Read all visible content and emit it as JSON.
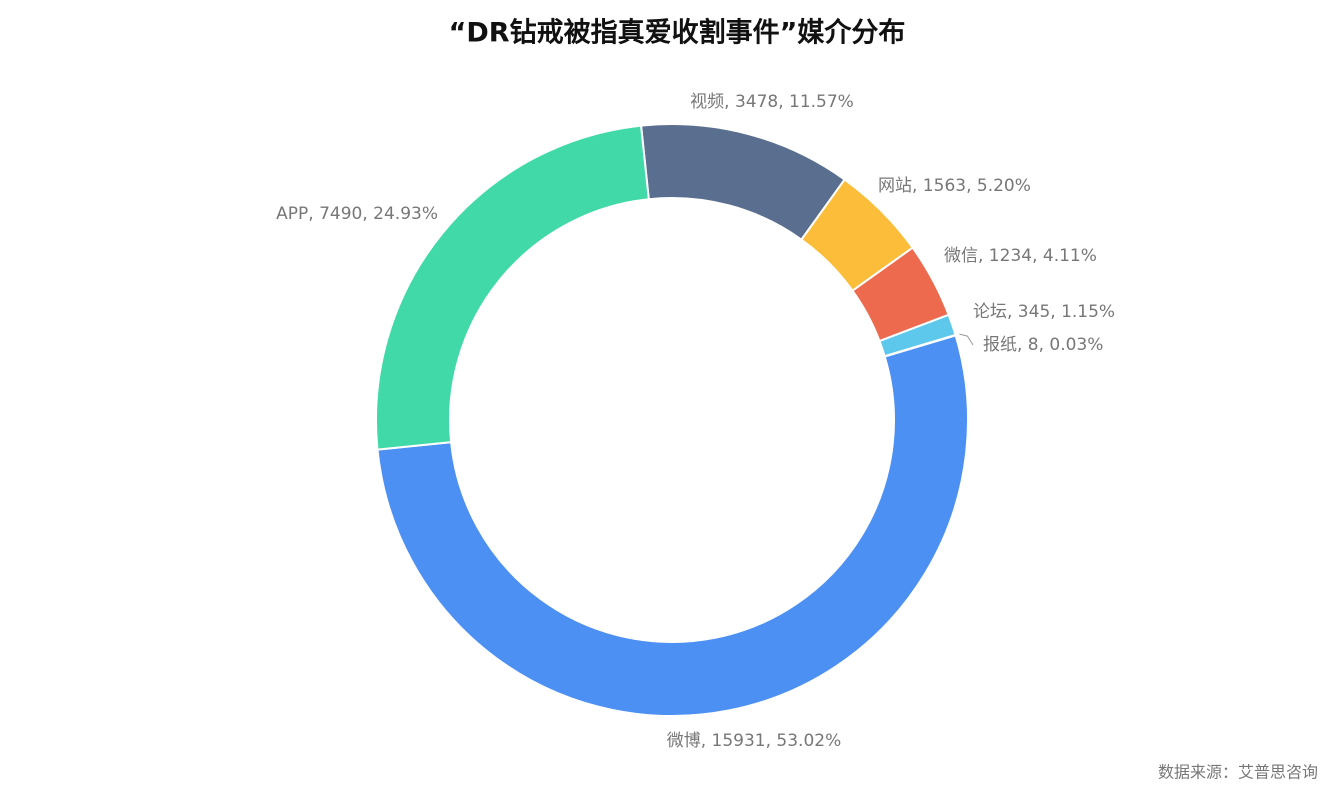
{
  "chart_data": {
    "type": "pie",
    "title": "“DR钻戒被指真爱收割事件”媒介分布",
    "source": "数据来源：艾普思咨询",
    "values": [
      3478,
      1563,
      1234,
      345,
      8,
      15931,
      7490
    ],
    "value_labels": [
      "视频, 3478, 11.57%",
      "网站, 1563, 5.20%",
      "微信, 1234, 4.11%",
      "论坛, 345, 1.15%",
      "报纸, 8, 0.03%",
      "微博, 15931, 53.02%",
      "APP, 7490, 24.93%"
    ],
    "colors": [
      "#5a6e8f",
      "#fbbd3a",
      "#ee6a4f",
      "#5ec8ec",
      "#a56ccf",
      "#4d90f3",
      "#42d9a8"
    ]
  }
}
